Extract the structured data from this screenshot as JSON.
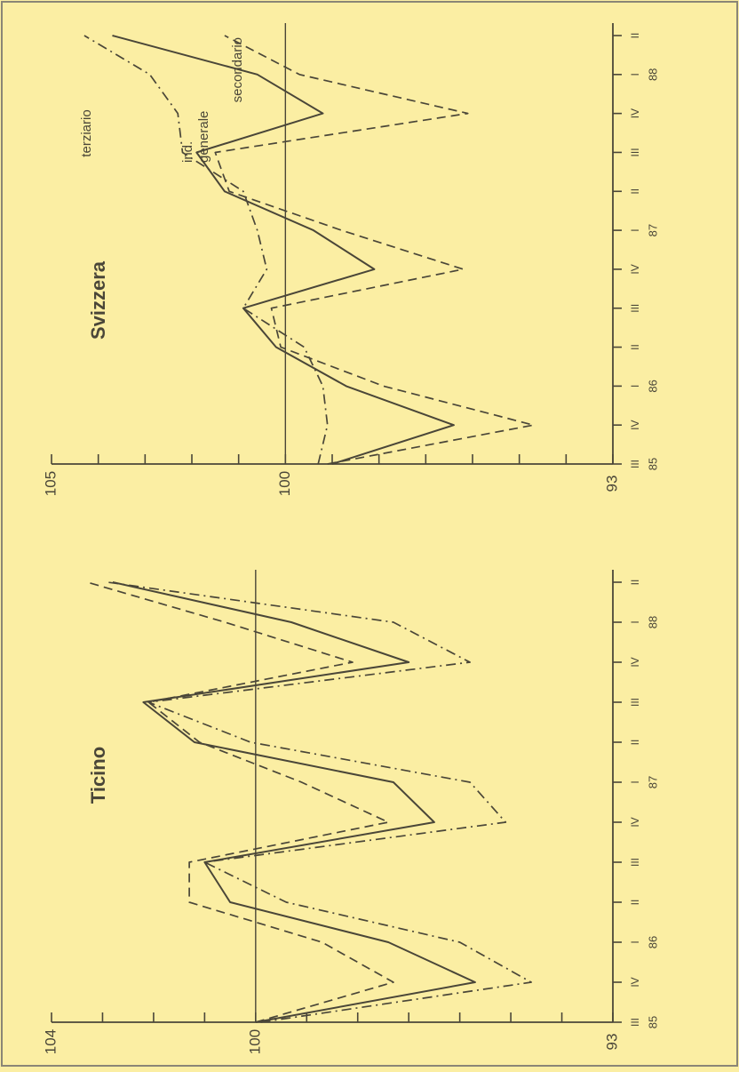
{
  "colors": {
    "background": "#fbeea3",
    "ink": "#4a4638",
    "frame": "#8a8676"
  },
  "chart_data": [
    {
      "type": "line",
      "title": "Ticino",
      "x": [
        "III",
        "IV",
        "I",
        "II",
        "III",
        "IV",
        "I",
        "II",
        "III",
        "IV",
        "I",
        "II"
      ],
      "year_labels": [
        {
          "label": "85",
          "index": 0
        },
        {
          "label": "86",
          "index": 2
        },
        {
          "label": "87",
          "index": 6
        },
        {
          "label": "88",
          "index": 10
        }
      ],
      "ylim": [
        93,
        104
      ],
      "y_tick_labels": [
        {
          "label": "104",
          "value": 104
        },
        {
          "label": "100",
          "value": 100
        },
        {
          "label": "93",
          "value": 93
        }
      ],
      "y_ticks": [
        93,
        94,
        95,
        96,
        97,
        98,
        99,
        100,
        101,
        102,
        103,
        104
      ],
      "reference_line": 100,
      "series": [
        {
          "style": "solid",
          "values": [
            100.0,
            95.7,
            97.4,
            100.5,
            101.0,
            96.5,
            97.3,
            101.2,
            102.2,
            97.0,
            99.3,
            102.8
          ]
        },
        {
          "style": "dashed",
          "values": [
            100.0,
            97.3,
            98.7,
            101.3,
            101.3,
            97.4,
            99.1,
            101.1,
            102.1,
            98.1,
            100.6,
            103.3
          ]
        },
        {
          "style": "dashdot",
          "values": [
            99.9,
            94.6,
            96.0,
            99.4,
            101.0,
            95.1,
            95.8,
            100.1,
            102.1,
            95.8,
            97.3,
            102.9
          ]
        }
      ]
    },
    {
      "type": "line",
      "title": "Svizzera",
      "x": [
        "III",
        "IV",
        "I",
        "II",
        "III",
        "IV",
        "I",
        "II",
        "III",
        "IV",
        "I",
        "II"
      ],
      "year_labels": [
        {
          "label": "85",
          "index": 0
        },
        {
          "label": "86",
          "index": 2
        },
        {
          "label": "87",
          "index": 6
        },
        {
          "label": "88",
          "index": 10
        }
      ],
      "ylim": [
        93,
        105
      ],
      "y_tick_labels": [
        {
          "label": "105",
          "value": 105
        },
        {
          "label": "100",
          "value": 100
        },
        {
          "label": "93",
          "value": 93
        }
      ],
      "y_ticks": [
        93,
        94,
        95,
        96,
        97,
        98,
        99,
        100,
        101,
        102,
        103,
        104,
        105
      ],
      "reference_line": 100,
      "annotations": [
        "terziario",
        "ind.",
        "generale",
        "secondario"
      ],
      "series": [
        {
          "name": "ind. generale",
          "style": "solid",
          "values": [
            99.0,
            96.4,
            98.7,
            100.2,
            100.9,
            98.1,
            99.4,
            101.3,
            101.9,
            99.2,
            100.6,
            103.7
          ]
        },
        {
          "name": "secondario",
          "style": "dashed",
          "values": [
            99.1,
            94.7,
            97.9,
            100.1,
            100.3,
            96.2,
            98.8,
            101.2,
            101.5,
            96.1,
            99.7,
            101.3
          ]
        },
        {
          "name": "terziario",
          "style": "dashdot",
          "values": [
            99.3,
            99.1,
            99.2,
            99.6,
            100.9,
            100.4,
            100.6,
            100.9,
            102.2,
            102.3,
            102.9,
            104.3
          ]
        }
      ]
    }
  ]
}
